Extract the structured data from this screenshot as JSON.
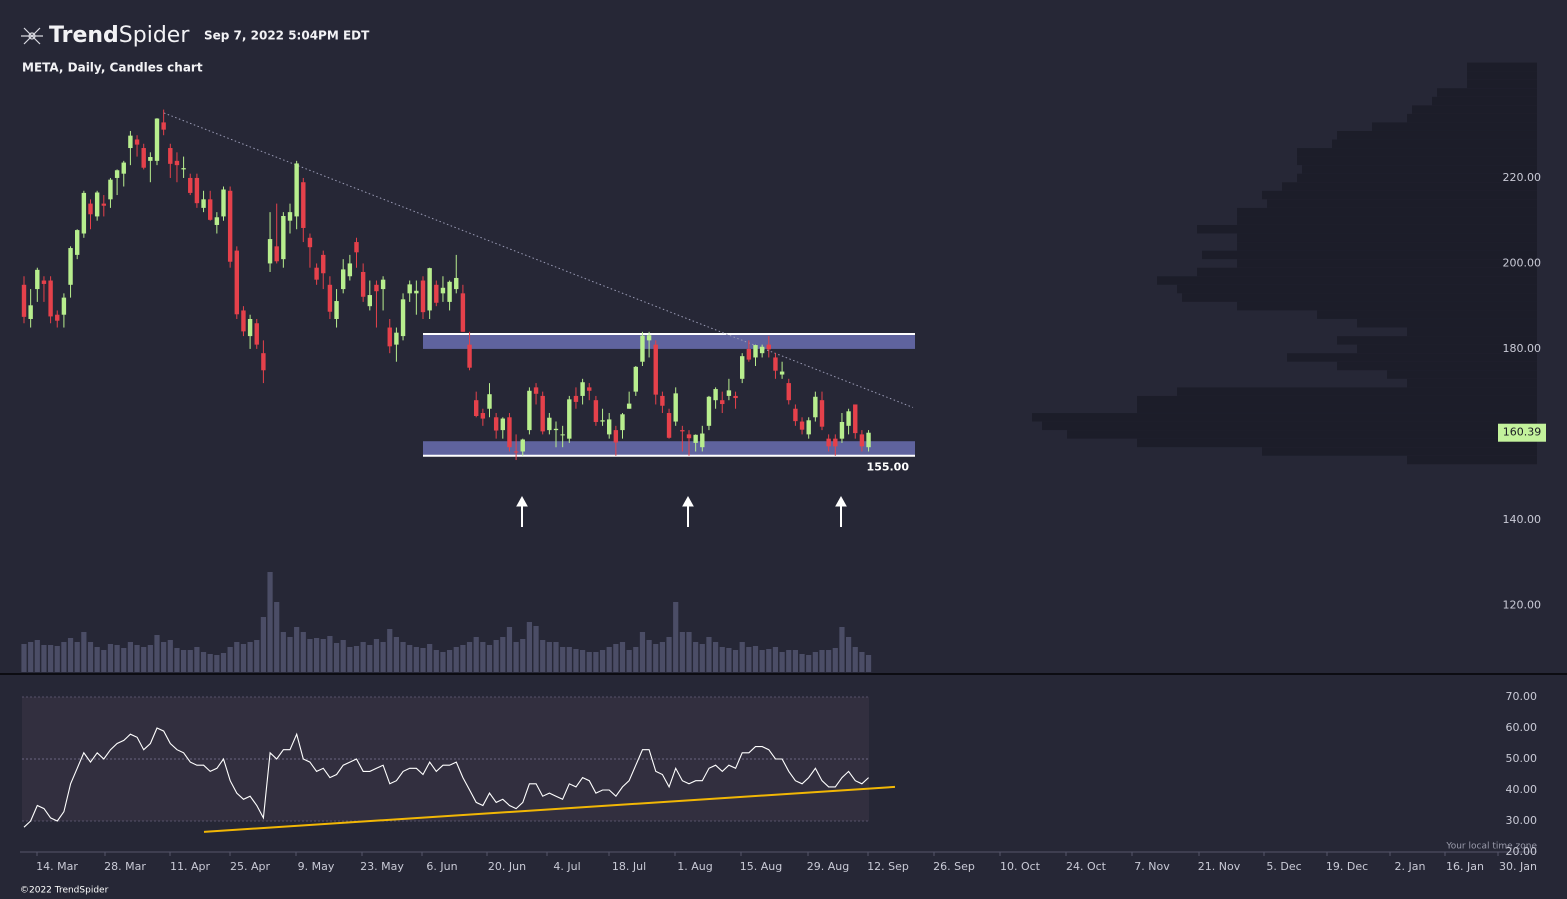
{
  "header": {
    "brand_bold": "Trend",
    "brand_light": "Spider",
    "timestamp": "Sep 7, 2022 5:04PM EDT"
  },
  "footer": {
    "copyright": "©2022 TrendSpider",
    "timezone_note": "Your local time zone"
  },
  "chart_data": {
    "type": "candlestick",
    "title": "META, Daily, Candles chart",
    "up_color": "#b8ee8e",
    "down_color": "#e5414b",
    "volume_color": "#4b4d66",
    "ylim": [
      104.4,
      247.6
    ],
    "yticks": [
      {
        "value": 220,
        "label": "220.00"
      },
      {
        "value": 200,
        "label": "200.00"
      },
      {
        "value": 180,
        "label": "180.00"
      },
      {
        "value": 140,
        "label": "140.00"
      },
      {
        "value": 120,
        "label": "120.00"
      }
    ],
    "xtick_labels": [
      "14. Mar",
      "28. Mar",
      "11. Apr",
      "25. Apr",
      "9. May",
      "23. May",
      "6. Jun",
      "20. Jun",
      "4. Jul",
      "18. Jul",
      "1. Aug",
      "15. Aug",
      "29. Aug",
      "12. Sep",
      "26. Sep",
      "10. Oct",
      "24. Oct",
      "7. Nov",
      "21. Nov",
      "5. Dec",
      "19. Dec",
      "2. Jan",
      "16. Jan",
      "30. Jan"
    ],
    "candles": [
      [
        195,
        197,
        186,
        187.5
      ],
      [
        187,
        194,
        185,
        190.2
      ],
      [
        194,
        199,
        191,
        198.5
      ],
      [
        196,
        197,
        191,
        195.2
      ],
      [
        196,
        197,
        186,
        187.6
      ],
      [
        188,
        189,
        185,
        186.6
      ],
      [
        188,
        193,
        185,
        192
      ],
      [
        195,
        204,
        192,
        203.6
      ],
      [
        202,
        208,
        201,
        207.8
      ],
      [
        207,
        217,
        206,
        216.5
      ],
      [
        214,
        215,
        208,
        211.5
      ],
      [
        211,
        217,
        210,
        216.6
      ],
      [
        214,
        216,
        211,
        213.5
      ],
      [
        215,
        220,
        213,
        219.6
      ],
      [
        220,
        222,
        216,
        221.8
      ],
      [
        221,
        224,
        218,
        223.6
      ],
      [
        227,
        231,
        223,
        229.9
      ],
      [
        229,
        230,
        225,
        227.8
      ],
      [
        227,
        228,
        222,
        222.4
      ],
      [
        224,
        226,
        219,
        224.9
      ],
      [
        224,
        234,
        223,
        233.9
      ],
      [
        233,
        236,
        230,
        231.3
      ],
      [
        227,
        228,
        220,
        223.3
      ],
      [
        224,
        226,
        219,
        223
      ],
      [
        222,
        225,
        220,
        222.3
      ],
      [
        220,
        221,
        216,
        216.5
      ],
      [
        220,
        221,
        213,
        214.1
      ],
      [
        213,
        217,
        212,
        215
      ],
      [
        215,
        217,
        210,
        210.2
      ],
      [
        209,
        212,
        207,
        210.8
      ],
      [
        211,
        218,
        210,
        217.3
      ],
      [
        217,
        218,
        199,
        200.4
      ],
      [
        203,
        204,
        187,
        188.1
      ],
      [
        189,
        190,
        183,
        184.1
      ],
      [
        183,
        188,
        180,
        187
      ],
      [
        186,
        187,
        180,
        181
      ],
      [
        179,
        182,
        172,
        175
      ],
      [
        200,
        212,
        198,
        205.7
      ],
      [
        204,
        214,
        200,
        200.5
      ],
      [
        201,
        212,
        199,
        211.1
      ],
      [
        210,
        214,
        207,
        212
      ],
      [
        211,
        224,
        208,
        223.4
      ],
      [
        219,
        220,
        205,
        208.3
      ],
      [
        206,
        207,
        199,
        203.8
      ],
      [
        199,
        200,
        195,
        196.2
      ],
      [
        202,
        203,
        194,
        197.7
      ],
      [
        195,
        197,
        187,
        188.7
      ],
      [
        187,
        194,
        185,
        191.2
      ],
      [
        194,
        201,
        193,
        198.6
      ],
      [
        197,
        202,
        196,
        200
      ],
      [
        205,
        206,
        199,
        202.6
      ],
      [
        198,
        200,
        191,
        192.2
      ],
      [
        190,
        196,
        189,
        192.6
      ],
      [
        195,
        196,
        185,
        193.5
      ],
      [
        194,
        197,
        189,
        196.2
      ],
      [
        185,
        187,
        179,
        180.6
      ],
      [
        181,
        185,
        177,
        183.8
      ],
      [
        183,
        193,
        182,
        191.6
      ],
      [
        193,
        196,
        191,
        195.1
      ],
      [
        193,
        196,
        188,
        193.6
      ],
      [
        196,
        197,
        187,
        188.6
      ],
      [
        189,
        199,
        187,
        198.9
      ],
      [
        195,
        196,
        190,
        190.8
      ],
      [
        193,
        197,
        191,
        194.3
      ],
      [
        191,
        196,
        189,
        195.7
      ],
      [
        194,
        202,
        193,
        196.6
      ],
      [
        193,
        195,
        184,
        184
      ],
      [
        181,
        184,
        175,
        175.6
      ],
      [
        168,
        170,
        164,
        164.3
      ],
      [
        165,
        166,
        162,
        163.7
      ],
      [
        166,
        172,
        164,
        169.4
      ],
      [
        164,
        165,
        159,
        160.9
      ],
      [
        161,
        164,
        159,
        163.7
      ],
      [
        164,
        165,
        156,
        157
      ],
      [
        156,
        160,
        154,
        155.9
      ],
      [
        156,
        159,
        155,
        158.8
      ],
      [
        161,
        171,
        160,
        170.2
      ],
      [
        171,
        172,
        167,
        169.5
      ],
      [
        169,
        170,
        160,
        160.7
      ],
      [
        161,
        165,
        160,
        163.9
      ],
      [
        161,
        163,
        157,
        161.3
      ],
      [
        160,
        162,
        157,
        160
      ],
      [
        159,
        169,
        158,
        168.2
      ],
      [
        169,
        171,
        166,
        167.6
      ],
      [
        169,
        173,
        167,
        172.2
      ],
      [
        171,
        172,
        168,
        170.2
      ],
      [
        168,
        169,
        162,
        162.9
      ],
      [
        163,
        166,
        162,
        163.3
      ],
      [
        160,
        165,
        159,
        163.5
      ],
      [
        161,
        162,
        155,
        158.1
      ],
      [
        161,
        165,
        159,
        164.7
      ],
      [
        166,
        170,
        166,
        167.2
      ],
      [
        170,
        176,
        169,
        175.8
      ],
      [
        177,
        184,
        176,
        183.1
      ],
      [
        182,
        184,
        178,
        183.2
      ],
      [
        181,
        182,
        167,
        169.3
      ],
      [
        169,
        170,
        165,
        166.7
      ],
      [
        165,
        166,
        159,
        159.2
      ],
      [
        163,
        171,
        162,
        169.6
      ],
      [
        161,
        162,
        156,
        160.7
      ],
      [
        160,
        161,
        155,
        159.1
      ],
      [
        158,
        160,
        156,
        159.9
      ],
      [
        157,
        162,
        156,
        160.2
      ],
      [
        162,
        169,
        161,
        168.8
      ],
      [
        168,
        171,
        166,
        170.6
      ],
      [
        168,
        170,
        165,
        167.1
      ],
      [
        169,
        173,
        168,
        170.3
      ],
      [
        169,
        170,
        166,
        168.5
      ],
      [
        173,
        179,
        172,
        178.3
      ],
      [
        180,
        182,
        177,
        177.5
      ],
      [
        178,
        181,
        176,
        180.9
      ],
      [
        179,
        181,
        178,
        180.5
      ],
      [
        181,
        183,
        178,
        179.9
      ],
      [
        178,
        179,
        173,
        174.9
      ],
      [
        174,
        177,
        173,
        174.7
      ],
      [
        172,
        173,
        167,
        168
      ],
      [
        166,
        167,
        162,
        163.1
      ],
      [
        163,
        164,
        160,
        161.1
      ],
      [
        160,
        164,
        159,
        163.3
      ],
      [
        164,
        170,
        163,
        168.8
      ],
      [
        168,
        170,
        161,
        161.8
      ],
      [
        159,
        160,
        156,
        157.2
      ],
      [
        159,
        160,
        155,
        157.2
      ],
      [
        159,
        165,
        158,
        162.9
      ],
      [
        162,
        166,
        160,
        165.4
      ],
      [
        167,
        167,
        159,
        160.3
      ],
      [
        160,
        161,
        156,
        157.2
      ],
      [
        157,
        161,
        156,
        160.39
      ]
    ],
    "volume": [
      28,
      30,
      32,
      27,
      27,
      26,
      30,
      34,
      30,
      40,
      30,
      25,
      22,
      28,
      27,
      24,
      30,
      27,
      25,
      27,
      37,
      30,
      32,
      24,
      22,
      22,
      25,
      20,
      18,
      17,
      19,
      25,
      30,
      28,
      30,
      32,
      55,
      100,
      70,
      40,
      35,
      45,
      40,
      33,
      34,
      33,
      36,
      29,
      32,
      25,
      26,
      30,
      27,
      33,
      30,
      43,
      35,
      30,
      27,
      25,
      24,
      28,
      22,
      20,
      22,
      25,
      27,
      30,
      35,
      30,
      27,
      32,
      35,
      45,
      30,
      33,
      50,
      46,
      32,
      30,
      30,
      25,
      25,
      23,
      22,
      20,
      20,
      22,
      25,
      28,
      30,
      22,
      25,
      40,
      32,
      28,
      30,
      35,
      70,
      40,
      40,
      30,
      28,
      35,
      30,
      25,
      24,
      22,
      30,
      25,
      26,
      22,
      23,
      25,
      20,
      22,
      22,
      18,
      17,
      20,
      22,
      22,
      24,
      45,
      35,
      25,
      20,
      17
    ],
    "last_price": 160.39,
    "zones": [
      {
        "low": 180,
        "high": 183.5
      },
      {
        "low": 155,
        "high": 158.4
      }
    ],
    "support_label": {
      "value": 155,
      "label": "155.00"
    },
    "trendline": [
      235.2,
      166.3
    ],
    "volume_profile": {
      "levels": [
        246,
        244,
        242,
        240,
        238,
        236,
        234,
        232,
        230,
        228,
        226,
        224,
        222,
        220,
        218,
        216,
        214,
        212,
        210,
        208,
        206,
        204,
        202,
        200,
        198,
        196,
        194,
        192,
        190,
        188,
        186,
        184,
        182,
        180,
        178,
        176,
        174,
        172,
        170,
        168,
        166,
        164,
        162,
        160,
        158,
        156,
        154
      ],
      "volumes": [
        70,
        70,
        70,
        100,
        105,
        125,
        130,
        165,
        200,
        205,
        240,
        240,
        235,
        240,
        255,
        275,
        270,
        300,
        300,
        340,
        300,
        300,
        335,
        300,
        340,
        380,
        360,
        355,
        300,
        220,
        180,
        130,
        200,
        180,
        250,
        200,
        150,
        130,
        360,
        400,
        400,
        505,
        495,
        470,
        400,
        275,
        130
      ]
    },
    "rsi": {
      "values": [
        28,
        30,
        35,
        34,
        31,
        30,
        33,
        42,
        47,
        52,
        49,
        52,
        50,
        53,
        55,
        56,
        58,
        57,
        53,
        55,
        60,
        59,
        55,
        53,
        52,
        49,
        48,
        48,
        46,
        47,
        50,
        43,
        39,
        37,
        38,
        35,
        31,
        52,
        50,
        53,
        53,
        58,
        50,
        49,
        46,
        47,
        44,
        45,
        48,
        49,
        50,
        46,
        46,
        47,
        48,
        42,
        43,
        46,
        47,
        47,
        45,
        49,
        46,
        48,
        48,
        49,
        44,
        40,
        36,
        35,
        39,
        36,
        37,
        35,
        34,
        36,
        42,
        42,
        38,
        39,
        38,
        37,
        42,
        41,
        44,
        43,
        39,
        40,
        40,
        38,
        41,
        43,
        48,
        53,
        53,
        46,
        45,
        41,
        47,
        43,
        42,
        43,
        43,
        47,
        48,
        46,
        48,
        47,
        52,
        52,
        54,
        54,
        53,
        50,
        50,
        46,
        43,
        42,
        44,
        47,
        43,
        41,
        41,
        44,
        46,
        43,
        42,
        44
      ],
      "color": "#ffffff",
      "ylim": [
        20,
        75.5
      ],
      "yticks": [
        {
          "value": 70,
          "label": "70.00"
        },
        {
          "value": 60,
          "label": "60.00"
        },
        {
          "value": 50,
          "label": "50.00"
        },
        {
          "value": 40,
          "label": "40.00"
        },
        {
          "value": 30,
          "label": "30.00"
        },
        {
          "value": 20,
          "label": "20.00"
        }
      ],
      "band": [
        30,
        70
      ],
      "midline": 50,
      "trendline": [
        26.5,
        41
      ],
      "trendline_color": "#f2b705"
    }
  }
}
